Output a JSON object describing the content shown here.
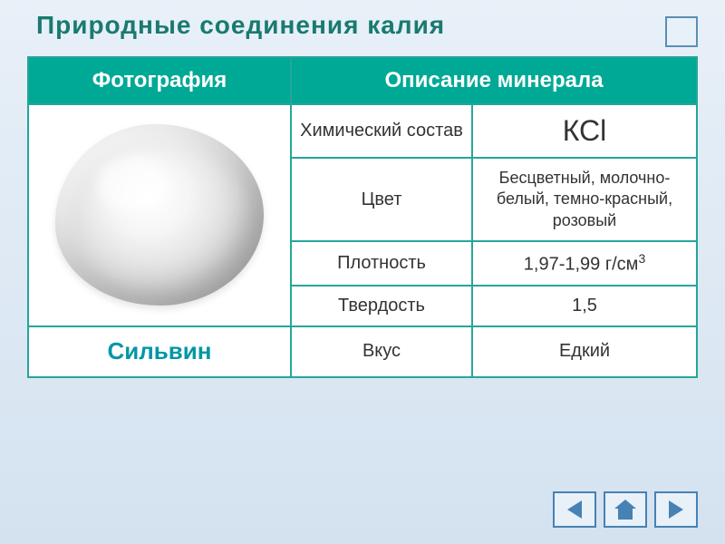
{
  "title": "Природные соединения  калия",
  "table": {
    "headers": {
      "photo": "Фотография",
      "desc": "Описание минерала"
    },
    "mineral_name": "Сильвин",
    "props": {
      "formula": {
        "label": "Химический состав",
        "value": "КСl"
      },
      "color": {
        "label": "Цвет",
        "value": "Бесцветный, молочно-белый, темно-красный, розовый"
      },
      "density": {
        "label": "Плотность",
        "value_prefix": "1,97-1,99 г/см",
        "value_sup": "3"
      },
      "hardness": {
        "label": "Твердость",
        "value": "1,5"
      },
      "taste": {
        "label": "Вкус",
        "value": "Едкий"
      }
    },
    "styling": {
      "border_color": "#26a69a",
      "header_bg": "#00a896",
      "header_fg": "#ffffff",
      "name_color": "#0097a7",
      "cell_bg": "#ffffff",
      "title_color": "#1a7a6f",
      "title_fontsize": 28,
      "header_fontsize": 24,
      "cell_fontsize": 20,
      "formula_fontsize": 32,
      "name_fontsize": 26
    }
  },
  "background": {
    "gradient_top": "#e8f0f8",
    "gradient_bottom": "#d4e2f0"
  },
  "nav": {
    "button_border": "#4682b4",
    "button_bg": "#e8f0f8",
    "icon_color": "#4682b4"
  }
}
